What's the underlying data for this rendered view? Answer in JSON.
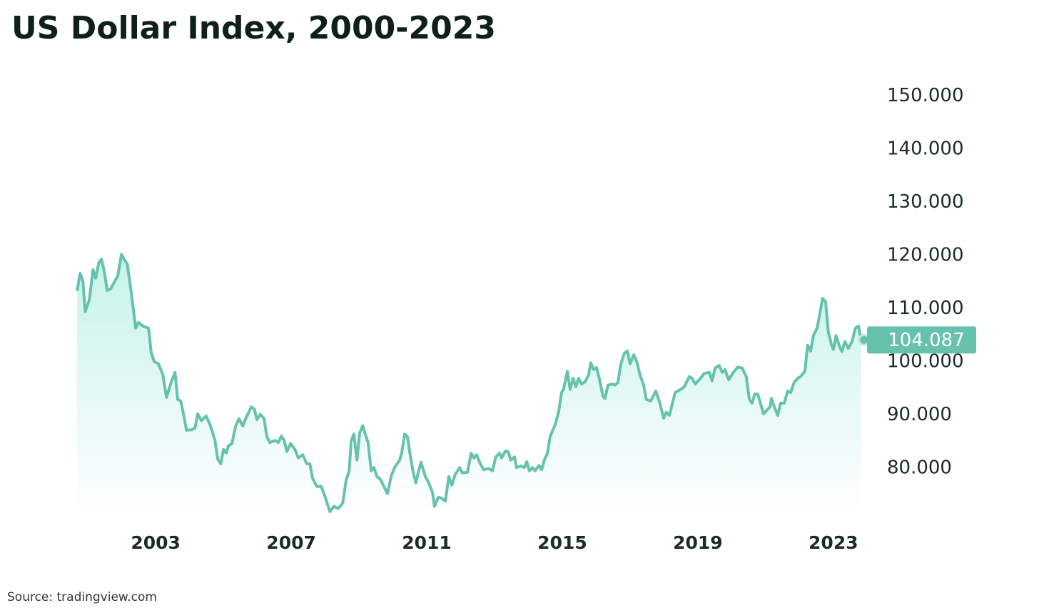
{
  "chart_data": {
    "type": "line",
    "title": "US Dollar Index, 2000-2023",
    "source": "Source: tradingview.com",
    "xlim": [
      2000.68,
      2023.93
    ],
    "xticks": [
      2003,
      2007,
      2011,
      2015,
      2019,
      2023
    ],
    "ylim": [
      71,
      155
    ],
    "yticks": [
      {
        "value": 80,
        "label": "80.000"
      },
      {
        "value": 90,
        "label": "90.000"
      },
      {
        "value": 100,
        "label": "100.000"
      },
      {
        "value": 110,
        "label": "110.000"
      },
      {
        "value": 120,
        "label": "120.000"
      },
      {
        "value": 130,
        "label": "130.000"
      },
      {
        "value": 140,
        "label": "140.000"
      },
      {
        "value": 150,
        "label": "150.000"
      }
    ],
    "grid": false,
    "area": true,
    "series": [
      {
        "color": "#66c2ac",
        "x": [
          2000.68,
          2000.77,
          2000.85,
          2000.92,
          2001.04,
          2001.15,
          2001.23,
          2001.32,
          2001.4,
          2001.48,
          2001.57,
          2001.67,
          2001.78,
          2001.88,
          2001.99,
          2002.07,
          2002.16,
          2002.28,
          2002.41,
          2002.49,
          2002.62,
          2002.79,
          2002.87,
          2002.96,
          2003.08,
          2003.21,
          2003.32,
          2003.46,
          2003.57,
          2003.65,
          2003.74,
          2003.82,
          2003.91,
          2004.05,
          2004.16,
          2004.24,
          2004.35,
          2004.49,
          2004.62,
          2004.75,
          2004.83,
          2004.92,
          2005.0,
          2005.08,
          2005.15,
          2005.25,
          2005.36,
          2005.46,
          2005.57,
          2005.67,
          2005.82,
          2005.91,
          2005.99,
          2006.09,
          2006.2,
          2006.28,
          2006.37,
          2006.52,
          2006.62,
          2006.71,
          2006.79,
          2006.87,
          2006.98,
          2007.11,
          2007.21,
          2007.34,
          2007.46,
          2007.55,
          2007.63,
          2007.76,
          2007.88,
          2007.99,
          2008.14,
          2008.26,
          2008.39,
          2008.52,
          2008.62,
          2008.71,
          2008.77,
          2008.85,
          2008.94,
          2009.02,
          2009.11,
          2009.23,
          2009.27,
          2009.36,
          2009.44,
          2009.53,
          2009.63,
          2009.74,
          2009.84,
          2009.95,
          2010.05,
          2010.2,
          2010.26,
          2010.35,
          2010.43,
          2010.52,
          2010.6,
          2010.68,
          2010.75,
          2010.83,
          2010.96,
          2011.06,
          2011.17,
          2011.23,
          2011.34,
          2011.42,
          2011.55,
          2011.65,
          2011.74,
          2011.84,
          2011.97,
          2012.05,
          2012.2,
          2012.31,
          2012.39,
          2012.47,
          2012.58,
          2012.68,
          2012.83,
          2012.94,
          2013.04,
          2013.15,
          2013.21,
          2013.32,
          2013.4,
          2013.48,
          2013.59,
          2013.65,
          2013.78,
          2013.88,
          2013.95,
          2014.03,
          2014.12,
          2014.2,
          2014.31,
          2014.39,
          2014.47,
          2014.56,
          2014.64,
          2014.79,
          2014.89,
          2014.98,
          2015.04,
          2015.15,
          2015.23,
          2015.32,
          2015.4,
          2015.48,
          2015.57,
          2015.67,
          2015.78,
          2015.84,
          2015.93,
          2016.01,
          2016.09,
          2016.2,
          2016.26,
          2016.35,
          2016.47,
          2016.56,
          2016.64,
          2016.73,
          2016.83,
          2016.92,
          2017.0,
          2017.11,
          2017.21,
          2017.29,
          2017.4,
          2017.48,
          2017.61,
          2017.76,
          2017.88,
          2017.99,
          2018.07,
          2018.16,
          2018.33,
          2018.52,
          2018.6,
          2018.75,
          2018.83,
          2018.92,
          2019.08,
          2019.19,
          2019.34,
          2019.42,
          2019.51,
          2019.63,
          2019.72,
          2019.8,
          2019.91,
          2020.05,
          2020.18,
          2020.31,
          2020.43,
          2020.52,
          2020.6,
          2020.68,
          2020.77,
          2020.94,
          2021.04,
          2021.13,
          2021.17,
          2021.27,
          2021.36,
          2021.44,
          2021.55,
          2021.65,
          2021.74,
          2021.84,
          2021.95,
          2022.03,
          2022.16,
          2022.24,
          2022.33,
          2022.41,
          2022.52,
          2022.6,
          2022.68,
          2022.77,
          2022.85,
          2022.94,
          2023.0,
          2023.08,
          2023.17,
          2023.25,
          2023.34,
          2023.44,
          2023.55,
          2023.65,
          2023.74,
          2023.82
        ],
        "values": [
          113.3,
          116.6,
          115.3,
          109.4,
          111.6,
          117.3,
          115.7,
          118.6,
          119.3,
          117.0,
          113.4,
          113.7,
          115.0,
          116.1,
          120.2,
          119.2,
          118.4,
          113.0,
          106.3,
          107.4,
          106.7,
          106.3,
          101.6,
          100.0,
          99.6,
          97.6,
          93.3,
          96.2,
          98.0,
          92.9,
          92.6,
          90.2,
          87.1,
          87.2,
          87.5,
          90.2,
          88.9,
          89.8,
          87.9,
          85.2,
          81.7,
          80.8,
          83.5,
          82.8,
          84.2,
          84.6,
          87.9,
          89.3,
          87.9,
          89.5,
          91.5,
          91.1,
          89.1,
          90.1,
          89.3,
          85.9,
          84.8,
          85.2,
          84.8,
          86.0,
          85.2,
          83.1,
          84.6,
          83.5,
          81.9,
          82.5,
          80.8,
          80.8,
          78.1,
          76.5,
          76.6,
          74.8,
          71.8,
          72.8,
          72.4,
          73.4,
          77.7,
          79.5,
          85.1,
          86.4,
          81.5,
          86.6,
          88.0,
          85.5,
          84.8,
          79.5,
          80.1,
          78.4,
          77.9,
          76.5,
          75.2,
          78.5,
          80.1,
          81.5,
          82.8,
          86.4,
          85.9,
          82.1,
          79.2,
          77.2,
          79.2,
          81.1,
          78.4,
          77.2,
          75.4,
          72.8,
          74.5,
          74.4,
          73.8,
          78.4,
          76.8,
          78.8,
          80.1,
          79.1,
          79.2,
          82.8,
          81.9,
          82.5,
          80.8,
          79.7,
          79.9,
          79.5,
          82.1,
          82.8,
          81.9,
          83.2,
          83.1,
          81.5,
          82.1,
          80.1,
          80.4,
          80.1,
          81.2,
          79.5,
          80.1,
          79.5,
          80.5,
          79.7,
          81.5,
          82.8,
          85.9,
          88.2,
          90.5,
          94.2,
          94.9,
          98.2,
          94.8,
          96.9,
          95.3,
          96.9,
          95.8,
          96.2,
          97.6,
          99.8,
          98.5,
          98.9,
          96.9,
          93.5,
          93.1,
          95.6,
          95.8,
          95.6,
          96.1,
          99.6,
          101.6,
          102.0,
          99.6,
          101.3,
          99.8,
          97.6,
          95.6,
          92.9,
          92.6,
          94.5,
          92.2,
          89.4,
          90.5,
          89.9,
          94.2,
          94.9,
          95.3,
          97.2,
          96.9,
          95.8,
          96.9,
          97.8,
          98.0,
          96.4,
          98.8,
          99.3,
          98.0,
          98.5,
          96.6,
          98.0,
          99.0,
          98.8,
          97.2,
          92.9,
          92.2,
          93.9,
          93.9,
          90.2,
          90.9,
          91.5,
          93.1,
          91.3,
          89.9,
          92.2,
          92.2,
          94.5,
          94.2,
          96.1,
          96.9,
          97.2,
          98.2,
          103.1,
          102.0,
          104.9,
          106.3,
          109.0,
          111.9,
          111.3,
          105.6,
          103.3,
          102.3,
          104.9,
          103.1,
          101.9,
          103.8,
          102.5,
          103.8,
          106.3,
          106.7,
          104.087
        ]
      }
    ]
  }
}
